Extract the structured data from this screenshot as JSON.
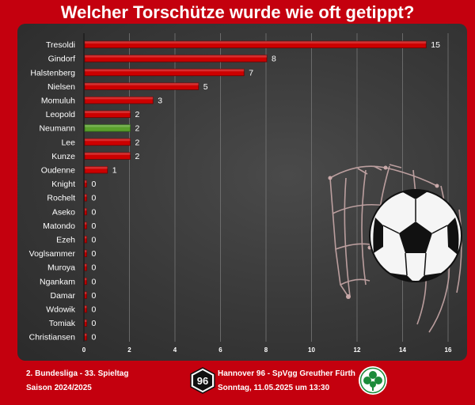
{
  "title": "Welcher Torschütze wurde wie oft getippt?",
  "footer": {
    "league": "2. Bundesliga - 33. Spieltag",
    "season": "Saison 2024/2025",
    "match": "Hannover 96 - SpVgg Greuther Fürth",
    "datetime": "Sonntag, 11.05.2025 um 13:30",
    "home_logo_text": "96"
  },
  "colors": {
    "background": "#c4000e",
    "bar": "#cc0000",
    "bar_highlight": "#5aa02c",
    "text": "#ffffff"
  },
  "chart_data": {
    "type": "bar",
    "orientation": "horizontal",
    "title": "Welcher Torschütze wurde wie oft getippt?",
    "categories": [
      "Tresoldi",
      "Gindorf",
      "Halstenberg",
      "Nielsen",
      "Momuluh",
      "Leopold",
      "Neumann",
      "Lee",
      "Kunze",
      "Oudenne",
      "Knight",
      "Rochelt",
      "Aseko",
      "Matondo",
      "Ezeh",
      "Voglsammer",
      "Muroya",
      "Ngankam",
      "Damar",
      "Wdowik",
      "Tomiak",
      "Christiansen"
    ],
    "values": [
      15,
      8,
      7,
      5,
      3,
      2,
      2,
      2,
      2,
      1,
      0,
      0,
      0,
      0,
      0,
      0,
      0,
      0,
      0,
      0,
      0,
      0
    ],
    "highlight": "Neumann",
    "xlim": [
      0,
      16
    ],
    "xticks": [
      0,
      2,
      4,
      6,
      8,
      10,
      12,
      14,
      16
    ],
    "grid": true,
    "data_labels": true
  }
}
